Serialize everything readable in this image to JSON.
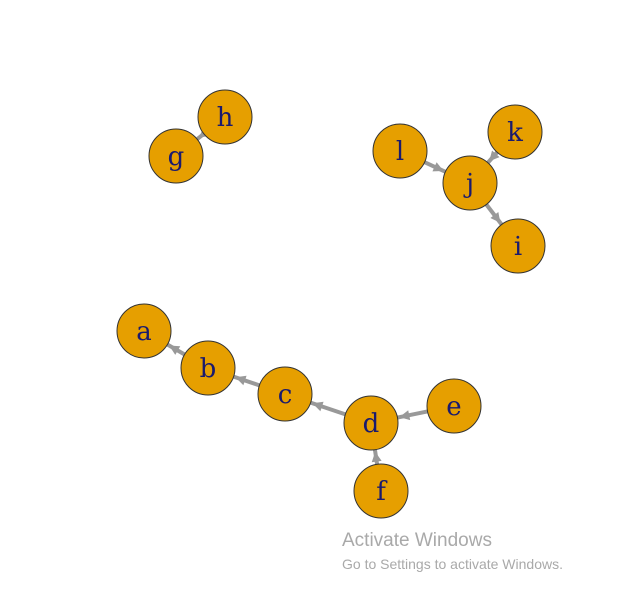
{
  "graph": {
    "node_fill": "#e69f00",
    "node_stroke": "#333333",
    "label_color": "#1a1a6e",
    "edge_color": "#999999",
    "nodes": [
      "a",
      "b",
      "c",
      "d",
      "e",
      "f",
      "g",
      "h",
      "i",
      "j",
      "k",
      "l"
    ],
    "edges": [
      {
        "from": "a",
        "to": "b"
      },
      {
        "from": "b",
        "to": "c"
      },
      {
        "from": "c",
        "to": "d"
      },
      {
        "from": "d",
        "to": "e"
      },
      {
        "from": "d",
        "to": "f"
      },
      {
        "from": "g",
        "to": "h"
      },
      {
        "from": "i",
        "to": "j"
      },
      {
        "from": "j",
        "to": "k"
      },
      {
        "from": "j",
        "to": "l"
      }
    ]
  },
  "watermark": {
    "title": "Activate Windows",
    "subtitle": "Go to Settings to activate Windows."
  }
}
